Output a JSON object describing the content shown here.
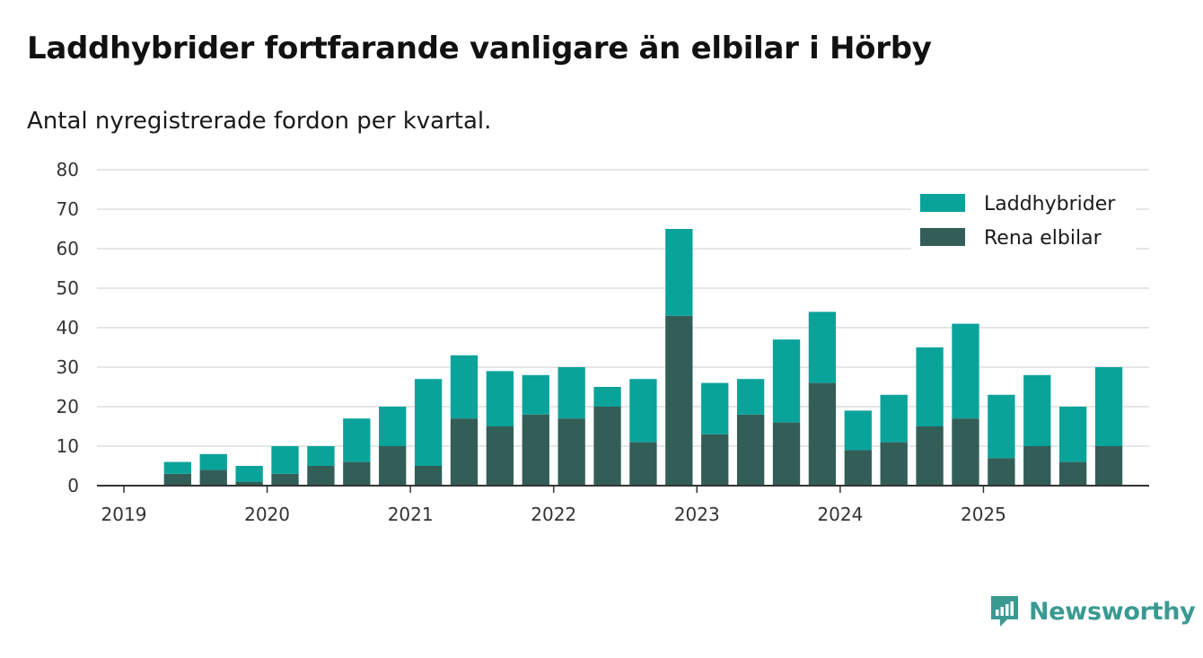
{
  "title": "Laddhybrider fortfarande vanligare än elbilar i Hörby",
  "subtitle": "Antal nyregistrerade fordon per kvartal.",
  "brand": {
    "name": "Newsworthy",
    "icon": "newsworthy-logo-icon"
  },
  "colors": {
    "plugin_hybrid": "#0aa39a",
    "electric": "#325e57",
    "grid": "#dddddd",
    "axis": "#333333"
  },
  "chart_data": {
    "type": "bar",
    "stacked": true,
    "title": "Laddhybrider fortfarande vanligare än elbilar i Hörby",
    "subtitle": "Antal nyregistrerade fordon per kvartal.",
    "xlabel": "",
    "ylabel": "",
    "ylim": [
      0,
      80
    ],
    "yticks": [
      0,
      10,
      20,
      30,
      40,
      50,
      60,
      70,
      80
    ],
    "grid": true,
    "legend_position": "top-right",
    "categories": [
      "2019 Q1",
      "2019 Q2",
      "2019 Q3",
      "2019 Q4",
      "2020 Q1",
      "2020 Q2",
      "2020 Q3",
      "2020 Q4",
      "2021 Q1",
      "2021 Q2",
      "2021 Q3",
      "2021 Q4",
      "2022 Q1",
      "2022 Q2",
      "2022 Q3",
      "2022 Q4",
      "2023 Q1",
      "2023 Q2",
      "2023 Q3",
      "2023 Q4",
      "2024 Q1",
      "2024 Q2",
      "2024 Q3",
      "2024 Q4",
      "2025 Q1",
      "2025 Q2",
      "2025 Q3",
      "2025 Q4"
    ],
    "xtick_labels": [
      "2019",
      "2020",
      "2021",
      "2022",
      "2023",
      "2024",
      "2025"
    ],
    "series": [
      {
        "name": "Rena elbilar",
        "color": "#325e57",
        "values": [
          0,
          3,
          4,
          1,
          3,
          5,
          6,
          10,
          5,
          17,
          15,
          18,
          17,
          20,
          11,
          43,
          13,
          18,
          16,
          26,
          9,
          11,
          15,
          17,
          7,
          10,
          6,
          10
        ]
      },
      {
        "name": "Laddhybrider",
        "color": "#0aa39a",
        "values": [
          0,
          3,
          4,
          4,
          7,
          5,
          11,
          10,
          22,
          16,
          14,
          10,
          13,
          5,
          16,
          22,
          13,
          9,
          21,
          18,
          10,
          12,
          20,
          24,
          16,
          18,
          14,
          20
        ]
      }
    ],
    "legend": [
      "Laddhybrider",
      "Rena elbilar"
    ]
  }
}
